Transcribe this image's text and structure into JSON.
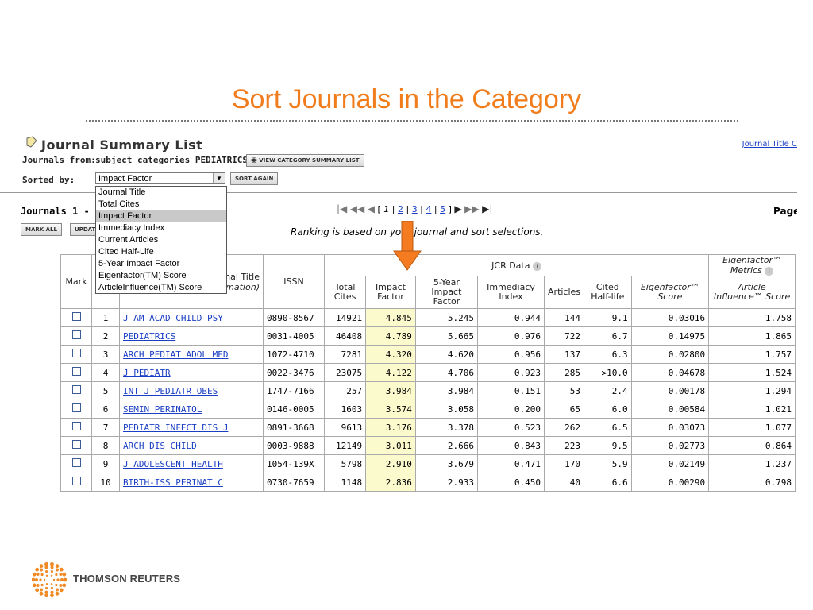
{
  "slide": {
    "title": "Sort Journals in the Category"
  },
  "header": {
    "title": "Journal Summary List",
    "top_link": "Journal Title C",
    "journals_from_label": "Journals from:",
    "journals_from_value": "subject categories PEDIATRICS",
    "view_category_button": "VIEW CATEGORY SUMMARY LIST",
    "sorted_by_label": "Sorted by:",
    "sort_select_value": "Impact Factor",
    "sort_again_button": "SORT AGAIN"
  },
  "sort_options": [
    "Journal Title",
    "Total Cites",
    "Impact Factor",
    "Immediacy Index",
    "Current Articles",
    "Cited Half-Life",
    "5-Year Impact Factor",
    "Eigenfactor(TM) Score",
    "ArticleInfluence(TM) Score"
  ],
  "toolbar": {
    "journals_count": "Journals 1 - 20",
    "mark_all": "MARK ALL",
    "update": "UPDATE",
    "page_label": "Page",
    "ranking_note": "Ranking is based on your journal and sort selections."
  },
  "pager": {
    "current": "1",
    "pages": [
      "2",
      "3",
      "4",
      "5"
    ]
  },
  "table": {
    "col_mark": "Mark",
    "col_title_line1": "Abbreviated Journal Title",
    "col_title_line2": "(linked to journal information)",
    "col_issn": "ISSN",
    "jcr_group": "JCR Data",
    "eigen_group": "Eigenfactor™ Metrics",
    "col_total_cites": "Total Cites",
    "col_impact_factor": "Impact Factor",
    "col_5yr": "5-Year Impact Factor",
    "col_immediacy": "Immediacy Index",
    "col_articles": "Articles",
    "col_half_life": "Cited Half-life",
    "col_eigenfactor": "Eigenfactor™ Score",
    "col_article_influence": "Article Influence™ Score",
    "rows": [
      {
        "rank": "1",
        "title": "J AM ACAD CHILD PSY",
        "issn": "0890-8567",
        "cites": "14921",
        "if": "4.845",
        "if5": "5.245",
        "imm": "0.944",
        "art": "144",
        "hl": "9.1",
        "eig": "0.03016",
        "ai": "1.758"
      },
      {
        "rank": "2",
        "title": "PEDIATRICS",
        "issn": "0031-4005",
        "cites": "46408",
        "if": "4.789",
        "if5": "5.665",
        "imm": "0.976",
        "art": "722",
        "hl": "6.7",
        "eig": "0.14975",
        "ai": "1.865"
      },
      {
        "rank": "3",
        "title": "ARCH PEDIAT ADOL MED",
        "issn": "1072-4710",
        "cites": "7281",
        "if": "4.320",
        "if5": "4.620",
        "imm": "0.956",
        "art": "137",
        "hl": "6.3",
        "eig": "0.02800",
        "ai": "1.757"
      },
      {
        "rank": "4",
        "title": "J PEDIATR",
        "issn": "0022-3476",
        "cites": "23075",
        "if": "4.122",
        "if5": "4.706",
        "imm": "0.923",
        "art": "285",
        "hl": ">10.0",
        "eig": "0.04678",
        "ai": "1.524"
      },
      {
        "rank": "5",
        "title": "INT J PEDIATR OBES",
        "issn": "1747-7166",
        "cites": "257",
        "if": "3.984",
        "if5": "3.984",
        "imm": "0.151",
        "art": "53",
        "hl": "2.4",
        "eig": "0.00178",
        "ai": "1.294"
      },
      {
        "rank": "6",
        "title": "SEMIN PERINATOL",
        "issn": "0146-0005",
        "cites": "1603",
        "if": "3.574",
        "if5": "3.058",
        "imm": "0.200",
        "art": "65",
        "hl": "6.0",
        "eig": "0.00584",
        "ai": "1.021"
      },
      {
        "rank": "7",
        "title": "PEDIATR INFECT DIS J",
        "issn": "0891-3668",
        "cites": "9613",
        "if": "3.176",
        "if5": "3.378",
        "imm": "0.523",
        "art": "262",
        "hl": "6.5",
        "eig": "0.03073",
        "ai": "1.077"
      },
      {
        "rank": "8",
        "title": "ARCH DIS CHILD",
        "issn": "0003-9888",
        "cites": "12149",
        "if": "3.011",
        "if5": "2.666",
        "imm": "0.843",
        "art": "223",
        "hl": "9.5",
        "eig": "0.02773",
        "ai": "0.864"
      },
      {
        "rank": "9",
        "title": "J ADOLESCENT HEALTH",
        "issn": "1054-139X",
        "cites": "5798",
        "if": "2.910",
        "if5": "3.679",
        "imm": "0.471",
        "art": "170",
        "hl": "5.9",
        "eig": "0.02149",
        "ai": "1.237"
      },
      {
        "rank": "10",
        "title": "BIRTH-ISS PERINAT C",
        "issn": "0730-7659",
        "cites": "1148",
        "if": "2.836",
        "if5": "2.933",
        "imm": "0.450",
        "art": "40",
        "hl": "6.6",
        "eig": "0.00290",
        "ai": "0.798"
      }
    ]
  },
  "footer": {
    "brand": "THOMSON REUTERS"
  },
  "colors": {
    "title_orange": "#f07c1c",
    "link_blue": "#1a3fc4",
    "highlight": "#fbfacd",
    "arrow_orange": "#f47b20"
  },
  "icons": [
    "journal-icon",
    "binoculars-icon",
    "info-icon",
    "first-page-icon",
    "prev-page-icon",
    "next-page-icon",
    "last-page-icon",
    "down-arrow-icon",
    "thomson-reuters-logo"
  ]
}
